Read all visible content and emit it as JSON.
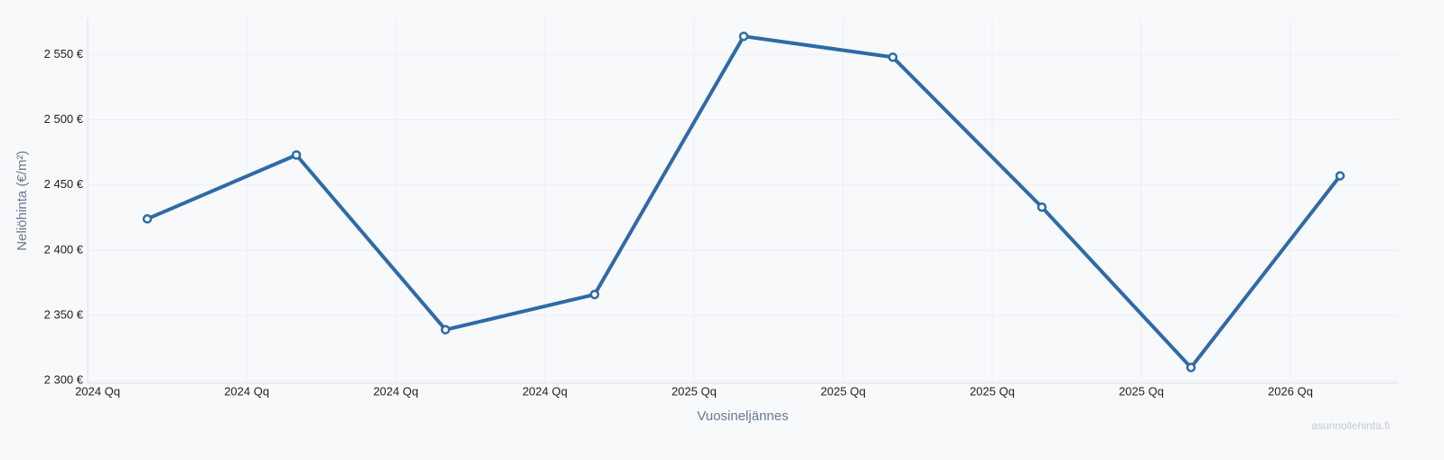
{
  "chart_data": {
    "type": "line",
    "y_label": "Neliöhinta (€/m²)",
    "x_label": "Vuosineljännes",
    "watermark": "asunnollehinta.fi",
    "categories": [
      "2024 Qq",
      "2024 Qq",
      "2024 Qq",
      "2024 Qq",
      "2025 Qq",
      "2025 Qq",
      "2025 Qq",
      "2025 Qq",
      "2026 Qq"
    ],
    "series": [
      {
        "color": "#2f6aa6",
        "values": [
          2424,
          2473,
          2339,
          2366,
          2564,
          2548,
          2433,
          2310,
          2457
        ]
      }
    ],
    "ylim": [
      2298,
      2578
    ],
    "yticks": [
      {
        "value": 2300,
        "label": "2 300 €"
      },
      {
        "value": 2350,
        "label": "2 350 €"
      },
      {
        "value": 2400,
        "label": "2 400 €"
      },
      {
        "value": 2450,
        "label": "2 450 €"
      },
      {
        "value": 2500,
        "label": "2 500 €"
      },
      {
        "value": 2550,
        "label": "2 550 €"
      }
    ],
    "grid": true
  }
}
